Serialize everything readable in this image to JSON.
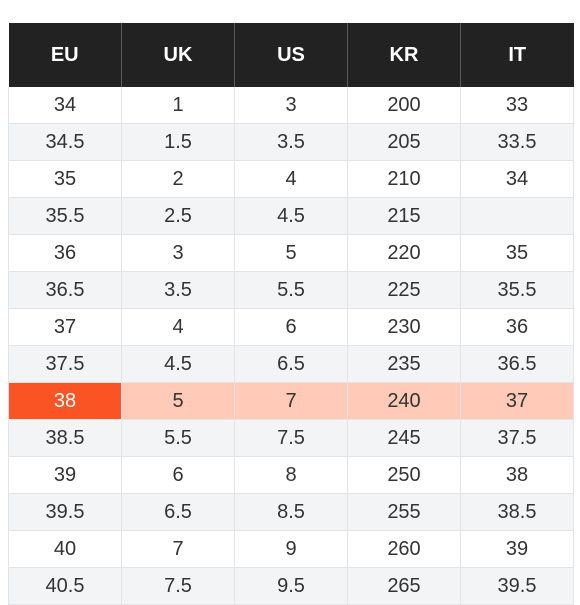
{
  "size_chart": {
    "headers": [
      "EU",
      "UK",
      "US",
      "KR",
      "IT"
    ],
    "selected_row_index": 8,
    "colors": {
      "header_bg": "#222222",
      "header_text": "#ffffff",
      "selected_key_bg": "#fb5424",
      "selected_row_bg": "#ffcbb8",
      "stripe_bg": "#f3f4f6"
    },
    "rows": [
      [
        "34",
        "1",
        "3",
        "200",
        "33"
      ],
      [
        "34.5",
        "1.5",
        "3.5",
        "205",
        "33.5"
      ],
      [
        "35",
        "2",
        "4",
        "210",
        "34"
      ],
      [
        "35.5",
        "2.5",
        "4.5",
        "215",
        ""
      ],
      [
        "36",
        "3",
        "5",
        "220",
        "35"
      ],
      [
        "36.5",
        "3.5",
        "5.5",
        "225",
        "35.5"
      ],
      [
        "37",
        "4",
        "6",
        "230",
        "36"
      ],
      [
        "37.5",
        "4.5",
        "6.5",
        "235",
        "36.5"
      ],
      [
        "38",
        "5",
        "7",
        "240",
        "37"
      ],
      [
        "38.5",
        "5.5",
        "7.5",
        "245",
        "37.5"
      ],
      [
        "39",
        "6",
        "8",
        "250",
        "38"
      ],
      [
        "39.5",
        "6.5",
        "8.5",
        "255",
        "38.5"
      ],
      [
        "40",
        "7",
        "9",
        "260",
        "39"
      ],
      [
        "40.5",
        "7.5",
        "9.5",
        "265",
        "39.5"
      ]
    ]
  }
}
